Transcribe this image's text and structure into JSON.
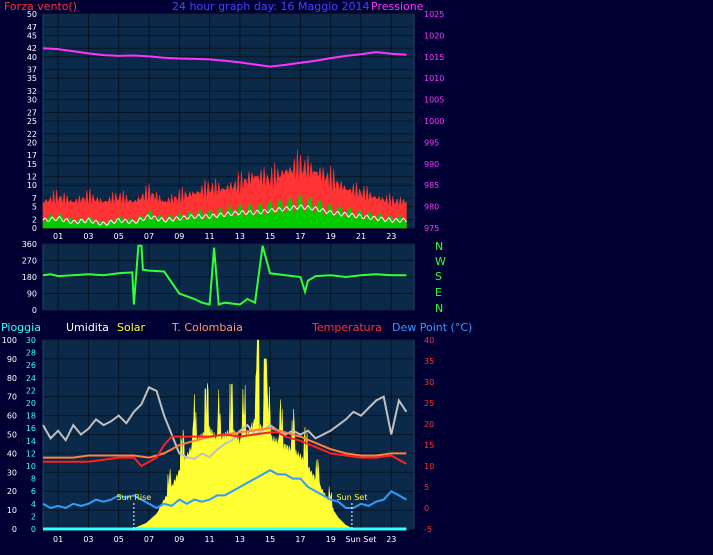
{
  "page_title": "24 hour graph day: 16 Maggio 2014",
  "colors": {
    "background": "#000033",
    "panel_frame": "#000066",
    "wind": "#ff3333",
    "wind_avg": "#00cc00",
    "wind_white": "#ffffff",
    "pressure": "#ff33ff",
    "direction": "#33ff33",
    "humidity": "#c0c0c0",
    "solar": "#ffff33",
    "temperature": "#ff2020",
    "t_colombaia": "#ff8040",
    "dew_point": "#3399ff",
    "rain": "#33ffff",
    "axis_labels": "#ffffff"
  },
  "chart_data": [
    {
      "id": "wind_pressure",
      "type": "line",
      "title": "24 hour graph day: 16 Maggio 2014",
      "left_axis_label": "Forza vento()",
      "right_axis_label": "Pressione",
      "ylim_left": [
        0,
        50
      ],
      "ylim_right": [
        975,
        1025
      ],
      "yticks_left": [
        "0",
        "2",
        "5",
        "7",
        "10",
        "12",
        "15",
        "17",
        "20",
        "22",
        "25",
        "27",
        "30",
        "32",
        "35",
        "37",
        "40",
        "42",
        "45",
        "47",
        "50"
      ],
      "yticks_right": [
        "975",
        "980",
        "985",
        "990",
        "995",
        "1000",
        "1005",
        "1010",
        "1015",
        "1020",
        "1025"
      ],
      "x_labels": [
        "01",
        "03",
        "05",
        "07",
        "09",
        "11",
        "13",
        "15",
        "17",
        "19",
        "21",
        "23"
      ],
      "x_hours": [
        1,
        3,
        5,
        7,
        9,
        11,
        13,
        15,
        17,
        19,
        21,
        23
      ],
      "xlim": [
        0,
        24.5
      ],
      "grid": true,
      "series": [
        {
          "key": "pressure",
          "axis": "right",
          "x": [
            0,
            1,
            2,
            3,
            4,
            5,
            6,
            7,
            8,
            9,
            10,
            11,
            12,
            13,
            14,
            15,
            16,
            17,
            18,
            19,
            20,
            21,
            22,
            23,
            24
          ],
          "values": [
            1017,
            1016.8,
            1016.3,
            1015.8,
            1015.4,
            1015.2,
            1015.3,
            1015.1,
            1014.8,
            1014.6,
            1014.5,
            1014.4,
            1014.1,
            1013.7,
            1013.2,
            1012.7,
            1013.1,
            1013.6,
            1014.1,
            1014.7,
            1015.2,
            1015.6,
            1016.1,
            1015.7,
            1015.5
          ]
        },
        {
          "key": "wind_gust",
          "axis": "left",
          "x": [
            0,
            1,
            2,
            3,
            4,
            5,
            6,
            7,
            8,
            9,
            10,
            11,
            12,
            13,
            14,
            15,
            16,
            17,
            18,
            19,
            20,
            21,
            22,
            23,
            24
          ],
          "values": [
            6,
            7,
            6,
            7,
            6,
            7,
            6,
            8,
            6,
            7,
            8,
            9,
            9,
            10,
            12,
            11,
            13,
            14,
            13,
            11,
            9,
            8,
            7,
            6,
            6
          ]
        },
        {
          "key": "wind_avg",
          "axis": "left",
          "x": [
            0,
            1,
            2,
            3,
            4,
            5,
            6,
            7,
            8,
            9,
            10,
            11,
            12,
            13,
            14,
            15,
            16,
            17,
            18,
            19,
            20,
            21,
            22,
            23,
            24
          ],
          "values": [
            2,
            2.5,
            1.5,
            2,
            1,
            2,
            1.5,
            3,
            2,
            2.5,
            3,
            3,
            3.5,
            4,
            4,
            4.5,
            5,
            5.5,
            5,
            4,
            3.5,
            3,
            2.5,
            2,
            2
          ]
        }
      ]
    },
    {
      "id": "wind_direction",
      "type": "line",
      "ylim": [
        0,
        360
      ],
      "yticks_left": [
        "0",
        "90",
        "180",
        "270",
        "360"
      ],
      "compass_labels": [
        "N",
        "W",
        "S",
        "E",
        "N"
      ],
      "xlim": [
        0,
        24.5
      ],
      "grid": true,
      "series": [
        {
          "key": "direction",
          "x": [
            0,
            0.5,
            1,
            2,
            3,
            4,
            5,
            5.9,
            6,
            6.3,
            6.5,
            6.6,
            7,
            8,
            8.5,
            9,
            10,
            10.5,
            11,
            11.3,
            11.6,
            12,
            13,
            13.5,
            14,
            14.5,
            15,
            16,
            17,
            17.3,
            17.5,
            18,
            19,
            20,
            21,
            22,
            23,
            24
          ],
          "values": [
            190,
            195,
            185,
            190,
            195,
            190,
            200,
            205,
            30,
            350,
            350,
            220,
            215,
            210,
            150,
            90,
            60,
            40,
            30,
            340,
            30,
            40,
            30,
            60,
            40,
            350,
            200,
            190,
            180,
            100,
            160,
            185,
            190,
            180,
            190,
            195,
            190,
            190
          ]
        }
      ]
    },
    {
      "id": "weather",
      "type": "line",
      "legend": [
        "Pioggia",
        "Umidita",
        "Solar",
        "T. Colombaia",
        "Temperatura",
        "Dew Point (°C)"
      ],
      "humidity_axis_ticks": [
        "0",
        "10",
        "20",
        "30",
        "40",
        "50",
        "60",
        "70",
        "80",
        "90",
        "100"
      ],
      "rain_axis_ticks": [
        "0",
        "2",
        "4",
        "6",
        "8",
        "10",
        "12",
        "14",
        "16",
        "18",
        "20",
        "22",
        "24",
        "26",
        "28",
        "30"
      ],
      "temp_axis_ticks": [
        "-5",
        "0",
        "5",
        "10",
        "15",
        "20",
        "25",
        "30",
        "35",
        "40"
      ],
      "temp_lim": [
        -5,
        40
      ],
      "humidity_lim": [
        0,
        100
      ],
      "xlim": [
        0,
        24.5
      ],
      "x_labels": [
        "01",
        "03",
        "05",
        "07",
        "09",
        "11",
        "13",
        "15",
        "17",
        "19",
        "Sun Set",
        "23"
      ],
      "x_hours": [
        1,
        3,
        5,
        7,
        9,
        11,
        13,
        15,
        17,
        19,
        21,
        23
      ],
      "annotations": [
        {
          "text": "Sun Rise",
          "hour": 6
        },
        {
          "text": "Sun Set",
          "hour": 20.4
        }
      ],
      "grid": true,
      "series": [
        {
          "key": "humidity",
          "axis": "humidity",
          "x": [
            0,
            0.5,
            1,
            1.5,
            2,
            2.5,
            3,
            3.5,
            4,
            4.5,
            5,
            5.5,
            6,
            6.5,
            7,
            7.5,
            8,
            8.5,
            9,
            9.5,
            10,
            10.5,
            11,
            11.5,
            12,
            12.5,
            13,
            13.5,
            14,
            14.5,
            15,
            15.5,
            16,
            16.5,
            17,
            17.5,
            18,
            18.5,
            19,
            19.5,
            20,
            20.5,
            21,
            21.5,
            22,
            22.5,
            23,
            23.5,
            24
          ],
          "values": [
            55,
            48,
            52,
            47,
            55,
            50,
            53,
            58,
            55,
            57,
            60,
            56,
            62,
            66,
            75,
            73,
            60,
            50,
            40,
            38,
            37,
            40,
            38,
            42,
            45,
            47,
            52,
            55,
            50,
            52,
            55,
            52,
            50,
            52,
            50,
            52,
            48,
            50,
            52,
            55,
            58,
            62,
            60,
            64,
            68,
            70,
            50,
            68,
            62
          ]
        },
        {
          "key": "solar",
          "axis": "humidity",
          "x": [
            0,
            5.8,
            6.2,
            6.8,
            7.5,
            8,
            8.5,
            9,
            9.5,
            10,
            10.5,
            11,
            11.5,
            12,
            12.5,
            13,
            13.5,
            14,
            14.5,
            15,
            15.5,
            16,
            16.5,
            17,
            17.5,
            18,
            18.5,
            19,
            19.5,
            20,
            20.5,
            24
          ],
          "values": [
            0,
            0,
            1,
            3,
            8,
            14,
            20,
            28,
            35,
            42,
            45,
            48,
            43,
            45,
            48,
            42,
            46,
            52,
            48,
            44,
            42,
            40,
            38,
            35,
            30,
            24,
            18,
            12,
            6,
            2,
            0,
            0
          ]
        },
        {
          "key": "temperature",
          "axis": "temp",
          "x": [
            0,
            1,
            2,
            3,
            4,
            5,
            6,
            6.5,
            7,
            7.5,
            8,
            8.5,
            9,
            10,
            11,
            12,
            13,
            14,
            15,
            15.5,
            16,
            17,
            18,
            19,
            20,
            21,
            22,
            23,
            24
          ],
          "values": [
            11,
            11,
            11,
            11,
            11.5,
            12,
            12,
            10,
            11,
            12,
            15,
            17,
            17,
            17,
            17,
            17.5,
            17,
            17.5,
            18,
            18,
            17,
            16,
            14.5,
            13,
            12.5,
            12,
            12,
            12.5,
            10.5
          ]
        },
        {
          "key": "t_colombaia",
          "axis": "temp",
          "x": [
            0,
            1,
            2,
            3,
            4,
            5,
            6,
            7,
            8,
            9,
            10,
            11,
            12,
            13,
            14,
            15,
            16,
            17,
            18,
            19,
            20,
            21,
            22,
            23,
            24
          ],
          "values": [
            12,
            12,
            12,
            12.5,
            12.5,
            12.5,
            12.5,
            12,
            13,
            15,
            16,
            17,
            17.5,
            18,
            18.5,
            19,
            18,
            17,
            15.5,
            14,
            13,
            12.5,
            12.5,
            13,
            13
          ]
        },
        {
          "key": "dew_point",
          "axis": "temp",
          "x": [
            0,
            0.5,
            1,
            1.5,
            2,
            2.5,
            3,
            3.5,
            4,
            4.5,
            5,
            5.5,
            6,
            6.5,
            7,
            7.5,
            8,
            8.5,
            9,
            9.5,
            10,
            10.5,
            11,
            11.5,
            12,
            12.5,
            13,
            13.5,
            14,
            14.5,
            15,
            15.5,
            16,
            16.5,
            17,
            17.5,
            18,
            18.5,
            19,
            19.5,
            20,
            20.5,
            21,
            21.5,
            22,
            22.5,
            23,
            23.5,
            24
          ],
          "values": [
            1,
            0,
            0.5,
            0,
            1,
            0.5,
            1,
            2,
            1.5,
            2,
            3,
            2.5,
            3,
            2,
            1,
            0,
            1,
            0.5,
            2,
            1,
            2,
            1.5,
            2,
            3,
            3,
            4,
            5,
            6,
            7,
            8,
            9,
            8,
            8,
            7,
            7,
            5,
            4,
            3,
            2,
            1.5,
            0,
            0,
            1,
            0.5,
            1.5,
            2,
            4,
            3,
            2
          ]
        },
        {
          "key": "rain",
          "axis": "rain",
          "x": [
            0,
            24
          ],
          "values": [
            0,
            0
          ]
        }
      ]
    }
  ]
}
